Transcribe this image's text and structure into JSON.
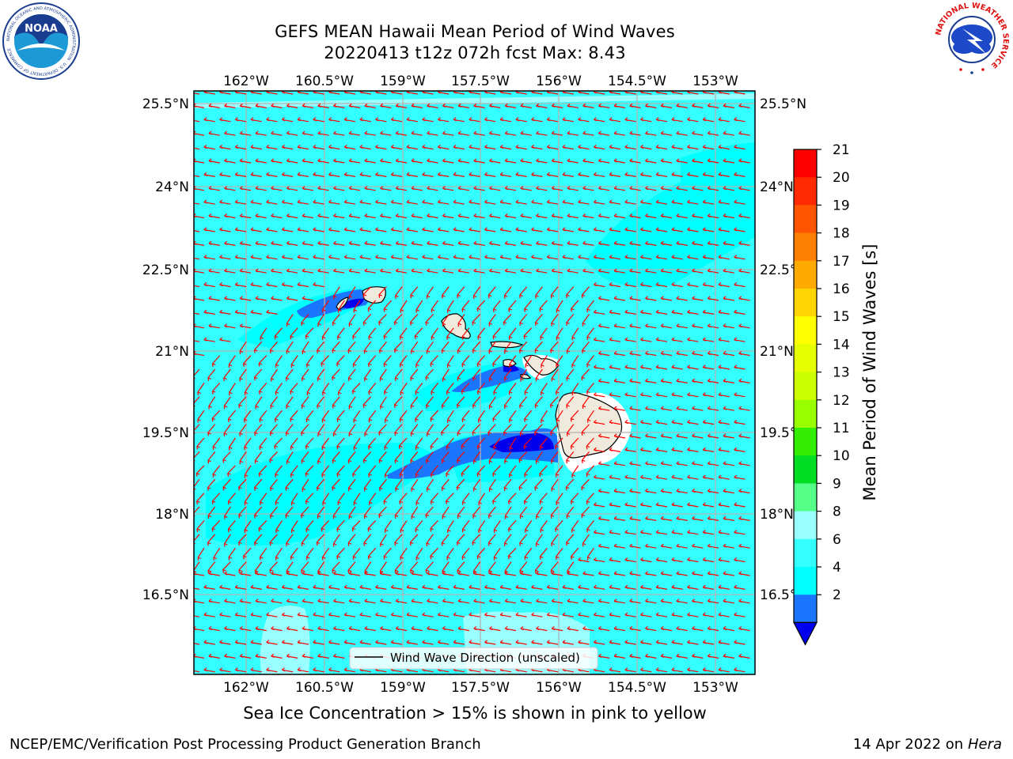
{
  "title": {
    "line1": "GEFS MEAN Hawaii Mean Period of Wind Waves",
    "line2": "20220413 t12z 072h fcst   Max: 8.43"
  },
  "map": {
    "lon_ticks": [
      "162°W",
      "160.5°W",
      "159°W",
      "157.5°W",
      "156°W",
      "154.5°W",
      "153°W"
    ],
    "lat_ticks": [
      "25.5°N",
      "24°N",
      "22.5°N",
      "21°N",
      "19.5°N",
      "18°N",
      "16.5°N"
    ],
    "legend_label": "Wind Wave Direction (unscaled)",
    "colors": {
      "ocean_base": "#33ffff",
      "ocean_light": "#99ffff",
      "ocean_mid": "#00ffff",
      "lee_blue": "#1a76ff",
      "lee_deep": "#0000ee",
      "land": "#efeadb",
      "arrow": "#ff0000",
      "grid": "#b3b3b3"
    }
  },
  "colorbar": {
    "label": "Mean Period of Wind Waves [s]",
    "ticks": [
      "21",
      "20",
      "19",
      "18",
      "17",
      "16",
      "15",
      "14",
      "13",
      "12",
      "11",
      "10",
      "9",
      "8",
      "6",
      "4",
      "2"
    ],
    "colors": [
      "#ff0000",
      "#ff2a00",
      "#ff5500",
      "#ff8000",
      "#ffaa00",
      "#ffd400",
      "#ffff00",
      "#e6ff00",
      "#ccff00",
      "#99ff00",
      "#33ee00",
      "#00dd22",
      "#55ff88",
      "#99ffff",
      "#33ffff",
      "#00ffff",
      "#1a76ff"
    ],
    "under_color": "#0000ee"
  },
  "footer": {
    "note": "Sea Ice Concentration > 15% is shown in pink to yellow",
    "credit_left": "NCEP/EMC/Verification Post Processing Product Generation Branch",
    "credit_date": "14 Apr 2022 on",
    "credit_machine": "Hera"
  },
  "logos": {
    "noaa_text": "NOAA",
    "noaa_ring": "NATIONAL OCEANIC AND ATMOSPHERIC ADMINISTRATION · U.S. DEPARTMENT OF COMMERCE",
    "nws_ring": "NATIONAL WEATHER SERVICE"
  }
}
